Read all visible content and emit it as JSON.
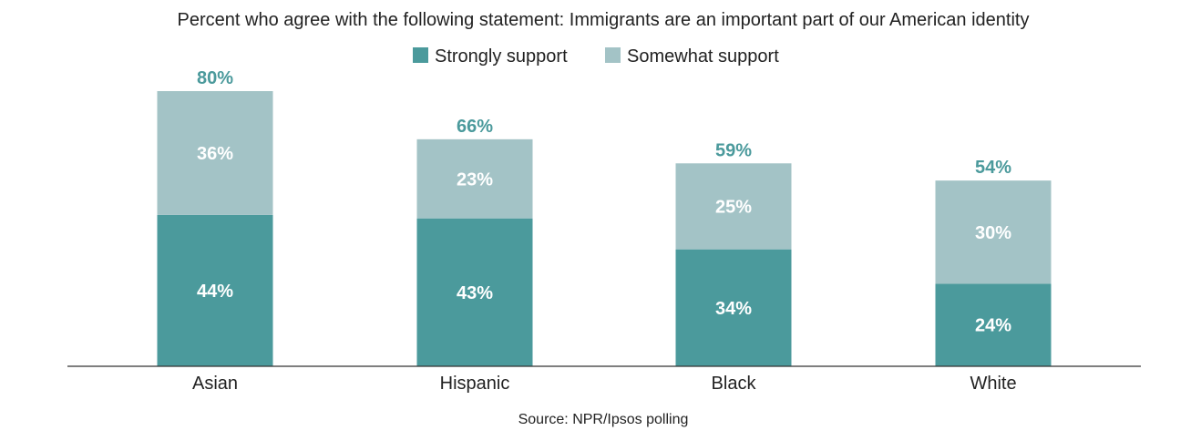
{
  "chart_data": {
    "type": "bar",
    "stacked": true,
    "title": "Percent who agree with the following statement: Immigrants are an important part of our American identity",
    "categories": [
      "Asian",
      "Hispanic",
      "Black",
      "White"
    ],
    "series": [
      {
        "name": "Strongly support",
        "values": [
          44,
          43,
          34,
          24
        ],
        "labels": [
          "44%",
          "43%",
          "34%",
          "24%"
        ],
        "color": "#4b9a9c"
      },
      {
        "name": "Somewhat support",
        "values": [
          36,
          23,
          25,
          30
        ],
        "labels": [
          "36%",
          "23%",
          "25%",
          "30%"
        ],
        "color": "#a3c3c6"
      }
    ],
    "totals": [
      80,
      66,
      59,
      54
    ],
    "total_labels": [
      "80%",
      "66%",
      "59%",
      "54%"
    ],
    "total_label_color": "#4b9a9c",
    "legend_position": "top-center",
    "grid": false,
    "ylim": [
      0,
      80
    ],
    "source": "Source: NPR/Ipsos polling"
  }
}
